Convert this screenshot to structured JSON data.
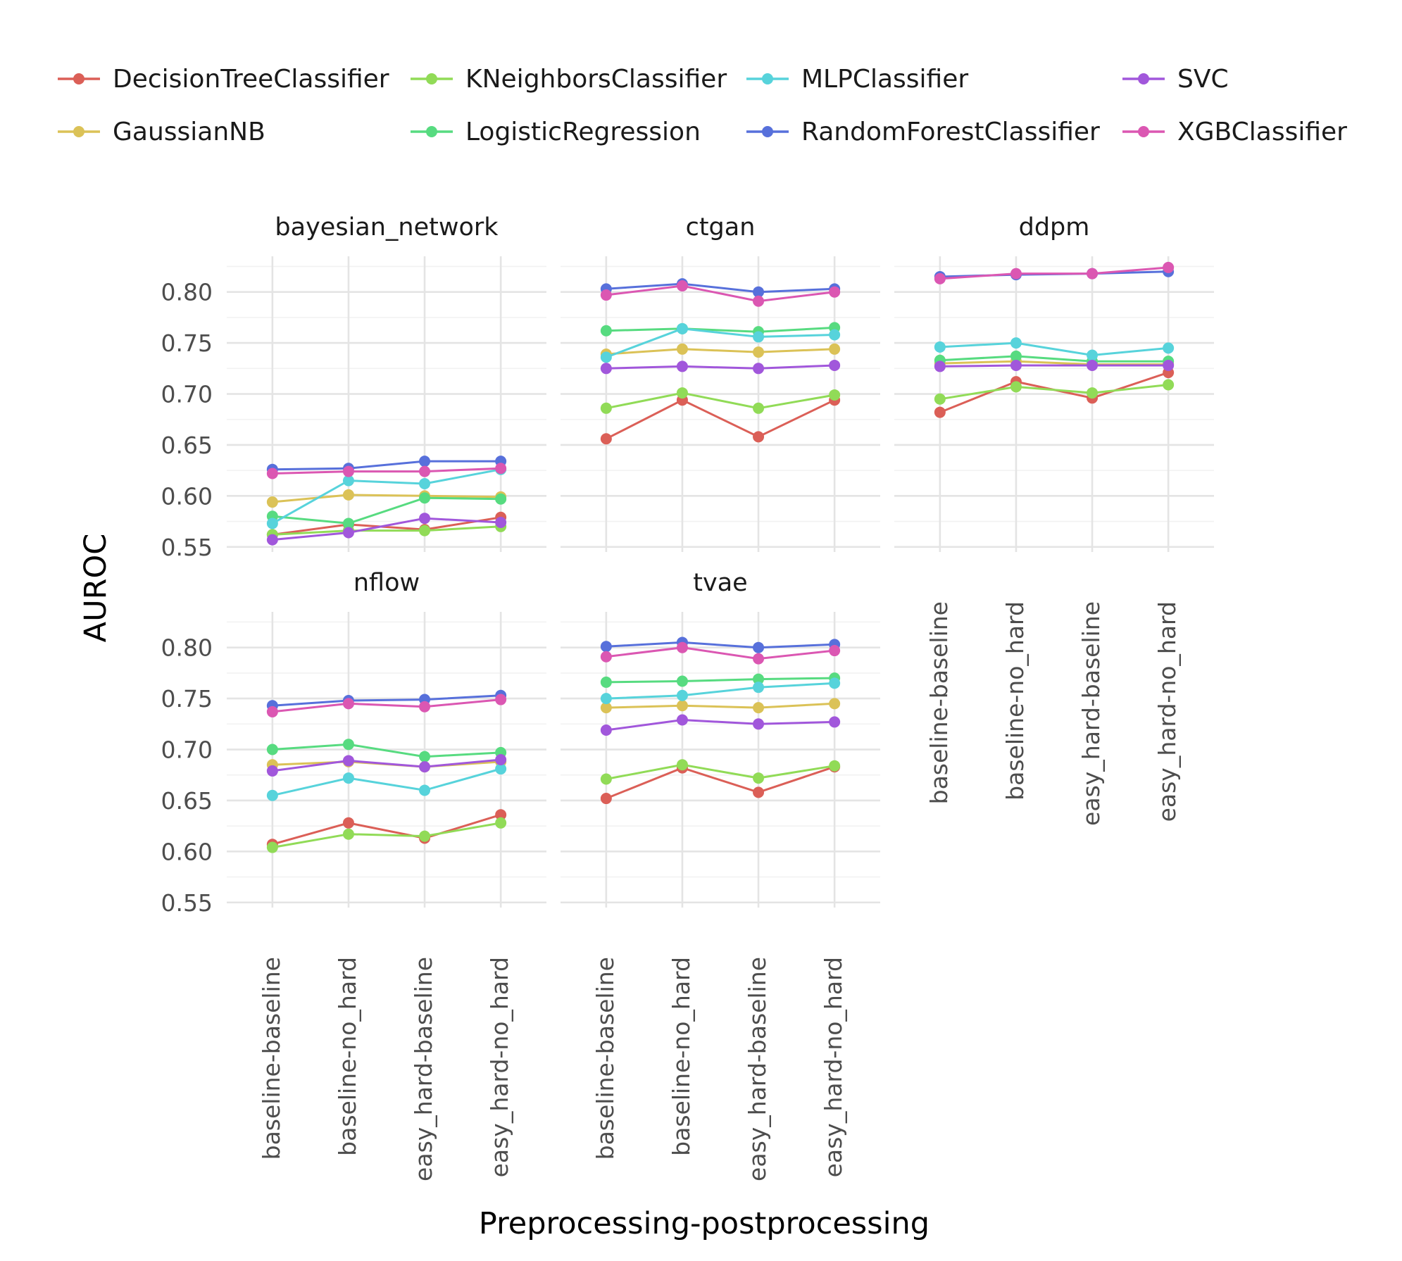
{
  "chart_data": {
    "type": "line",
    "xlabel": "Preprocessing-postprocessing",
    "ylabel": "AUROC",
    "ylim": [
      0.545,
      0.835
    ],
    "yticks": [
      0.55,
      0.6,
      0.65,
      0.7,
      0.75,
      0.8
    ],
    "ytick_labels": [
      "0.55",
      "0.60",
      "0.65",
      "0.70",
      "0.75",
      "0.80"
    ],
    "categories": [
      "baseline-baseline",
      "baseline-no_hard",
      "easy_hard-baseline",
      "easy_hard-no_hard"
    ],
    "grid": true,
    "legend_position": "top",
    "legend": [
      {
        "name": "DecisionTreeClassifier",
        "color": "#db5f57"
      },
      {
        "name": "GaussianNB",
        "color": "#dbc257"
      },
      {
        "name": "KNeighborsClassifier",
        "color": "#91db57"
      },
      {
        "name": "LogisticRegression",
        "color": "#57db80"
      },
      {
        "name": "MLPClassifier",
        "color": "#57d3db"
      },
      {
        "name": "RandomForestClassifier",
        "color": "#5770db"
      },
      {
        "name": "SVC",
        "color": "#a157db"
      },
      {
        "name": "XGBClassifier",
        "color": "#db57b2"
      }
    ],
    "panels": [
      {
        "title": "bayesian_network",
        "series": [
          {
            "name": "DecisionTreeClassifier",
            "values": [
              0.562,
              0.572,
              0.567,
              0.579
            ]
          },
          {
            "name": "GaussianNB",
            "values": [
              0.594,
              0.601,
              0.6,
              0.599
            ]
          },
          {
            "name": "KNeighborsClassifier",
            "values": [
              0.562,
              0.566,
              0.566,
              0.57
            ]
          },
          {
            "name": "LogisticRegression",
            "values": [
              0.58,
              0.573,
              0.598,
              0.597
            ]
          },
          {
            "name": "MLPClassifier",
            "values": [
              0.573,
              0.615,
              0.612,
              0.626
            ]
          },
          {
            "name": "RandomForestClassifier",
            "values": [
              0.626,
              0.627,
              0.634,
              0.634
            ]
          },
          {
            "name": "SVC",
            "values": [
              0.557,
              0.564,
              0.578,
              0.574
            ]
          },
          {
            "name": "XGBClassifier",
            "values": [
              0.622,
              0.624,
              0.624,
              0.627
            ]
          }
        ]
      },
      {
        "title": "ctgan",
        "series": [
          {
            "name": "DecisionTreeClassifier",
            "values": [
              0.656,
              0.694,
              0.658,
              0.694
            ]
          },
          {
            "name": "GaussianNB",
            "values": [
              0.739,
              0.744,
              0.741,
              0.744
            ]
          },
          {
            "name": "KNeighborsClassifier",
            "values": [
              0.686,
              0.701,
              0.686,
              0.699
            ]
          },
          {
            "name": "LogisticRegression",
            "values": [
              0.762,
              0.764,
              0.761,
              0.765
            ]
          },
          {
            "name": "MLPClassifier",
            "values": [
              0.736,
              0.764,
              0.756,
              0.758
            ]
          },
          {
            "name": "RandomForestClassifier",
            "values": [
              0.803,
              0.808,
              0.8,
              0.803
            ]
          },
          {
            "name": "SVC",
            "values": [
              0.725,
              0.727,
              0.725,
              0.728
            ]
          },
          {
            "name": "XGBClassifier",
            "values": [
              0.797,
              0.806,
              0.791,
              0.8
            ]
          }
        ]
      },
      {
        "title": "ddpm",
        "series": [
          {
            "name": "DecisionTreeClassifier",
            "values": [
              0.682,
              0.712,
              0.696,
              0.721
            ]
          },
          {
            "name": "GaussianNB",
            "values": [
              0.73,
              0.732,
              0.729,
              0.729
            ]
          },
          {
            "name": "KNeighborsClassifier",
            "values": [
              0.695,
              0.707,
              0.701,
              0.709
            ]
          },
          {
            "name": "LogisticRegression",
            "values": [
              0.733,
              0.737,
              0.732,
              0.732
            ]
          },
          {
            "name": "MLPClassifier",
            "values": [
              0.746,
              0.75,
              0.738,
              0.745
            ]
          },
          {
            "name": "RandomForestClassifier",
            "values": [
              0.815,
              0.817,
              0.818,
              0.82
            ]
          },
          {
            "name": "SVC",
            "values": [
              0.727,
              0.728,
              0.728,
              0.728
            ]
          },
          {
            "name": "XGBClassifier",
            "values": [
              0.813,
              0.818,
              0.818,
              0.824
            ]
          }
        ]
      },
      {
        "title": "nflow",
        "series": [
          {
            "name": "DecisionTreeClassifier",
            "values": [
              0.607,
              0.628,
              0.613,
              0.636
            ]
          },
          {
            "name": "GaussianNB",
            "values": [
              0.685,
              0.688,
              0.683,
              0.688
            ]
          },
          {
            "name": "KNeighborsClassifier",
            "values": [
              0.604,
              0.617,
              0.615,
              0.628
            ]
          },
          {
            "name": "LogisticRegression",
            "values": [
              0.7,
              0.705,
              0.693,
              0.697
            ]
          },
          {
            "name": "MLPClassifier",
            "values": [
              0.655,
              0.672,
              0.66,
              0.681
            ]
          },
          {
            "name": "RandomForestClassifier",
            "values": [
              0.743,
              0.748,
              0.749,
              0.753
            ]
          },
          {
            "name": "SVC",
            "values": [
              0.679,
              0.689,
              0.683,
              0.69
            ]
          },
          {
            "name": "XGBClassifier",
            "values": [
              0.737,
              0.745,
              0.742,
              0.749
            ]
          }
        ]
      },
      {
        "title": "tvae",
        "series": [
          {
            "name": "DecisionTreeClassifier",
            "values": [
              0.652,
              0.682,
              0.658,
              0.683
            ]
          },
          {
            "name": "GaussianNB",
            "values": [
              0.741,
              0.743,
              0.741,
              0.745
            ]
          },
          {
            "name": "KNeighborsClassifier",
            "values": [
              0.671,
              0.685,
              0.672,
              0.684
            ]
          },
          {
            "name": "LogisticRegression",
            "values": [
              0.766,
              0.767,
              0.769,
              0.77
            ]
          },
          {
            "name": "MLPClassifier",
            "values": [
              0.75,
              0.753,
              0.761,
              0.765
            ]
          },
          {
            "name": "RandomForestClassifier",
            "values": [
              0.801,
              0.805,
              0.8,
              0.803
            ]
          },
          {
            "name": "SVC",
            "values": [
              0.719,
              0.729,
              0.725,
              0.727
            ]
          },
          {
            "name": "XGBClassifier",
            "values": [
              0.791,
              0.8,
              0.789,
              0.797
            ]
          }
        ]
      }
    ]
  }
}
